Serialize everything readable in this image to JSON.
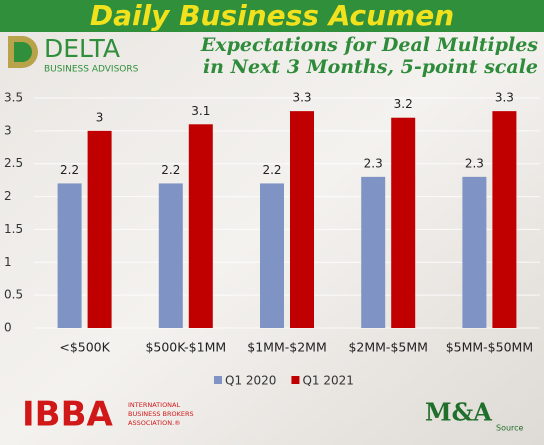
{
  "banner": "Daily Business Acumen",
  "logos": {
    "delta": "DELTA",
    "delta_sub": "BUSINESS ADVISORS",
    "ibba": "IBBA",
    "ibba_sub": [
      "INTERNATIONAL",
      "BUSINESS BROKERS",
      "ASSOCIATION.®"
    ],
    "ma": "M&A",
    "ma_sub": "Source"
  },
  "chart_data": {
    "type": "bar",
    "title": [
      "Expectations for Deal Multiples",
      "in Next 3 Months, 5-point scale"
    ],
    "categories": [
      "<$500K",
      "$500K-$1MM",
      "$1MM-$2MM",
      "$2MM-$5MM",
      "$5MM-$50MM"
    ],
    "series": [
      {
        "name": "Q1 2020",
        "color": "#7f94c4",
        "values": [
          2.2,
          2.2,
          2.2,
          2.3,
          2.3
        ]
      },
      {
        "name": "Q1 2021",
        "color": "#c00000",
        "values": [
          3,
          3.1,
          3.3,
          3.2,
          3.3
        ]
      }
    ],
    "ylim": [
      0,
      3.5
    ],
    "yticks": [
      0,
      0.5,
      1,
      1.5,
      2,
      2.5,
      3,
      3.5
    ],
    "grid": true,
    "legend": "bottom"
  }
}
